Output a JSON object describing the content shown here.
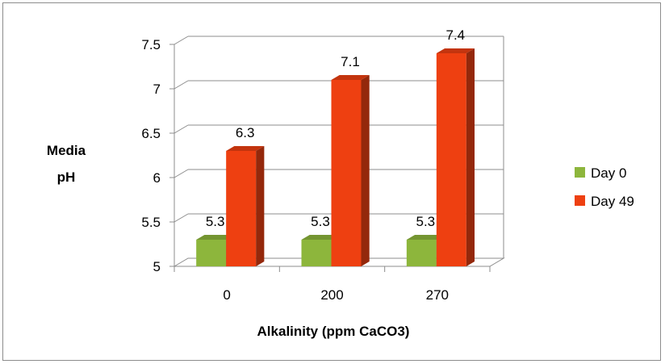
{
  "chart_data": {
    "type": "bar",
    "categories": [
      "0",
      "200",
      "270"
    ],
    "series": [
      {
        "name": "Day 0",
        "values": [
          5.3,
          5.3,
          5.3
        ],
        "color": "#8DB63C",
        "labels": [
          "5.3",
          "5.3",
          "5.3"
        ]
      },
      {
        "name": "Day 49",
        "values": [
          6.3,
          7.1,
          7.4
        ],
        "color": "#EE4011",
        "labels": [
          "6.3",
          "7.1",
          "7.4"
        ]
      }
    ],
    "title": "",
    "xlabel": "Alkalinity (ppm CaCO3)",
    "ylabel": "Media pH",
    "ylabel_lines": [
      "Media",
      "pH"
    ],
    "ylim": [
      5,
      7.5
    ],
    "yticks": [
      {
        "value": 5,
        "label": "5"
      },
      {
        "value": 5.5,
        "label": "5.5"
      },
      {
        "value": 6,
        "label": "6"
      },
      {
        "value": 6.5,
        "label": "6.5"
      },
      {
        "value": 7,
        "label": "7"
      },
      {
        "value": 7.5,
        "label": "7.5"
      }
    ],
    "grid": true,
    "legend": "right",
    "style": "3d-clustered-column"
  }
}
